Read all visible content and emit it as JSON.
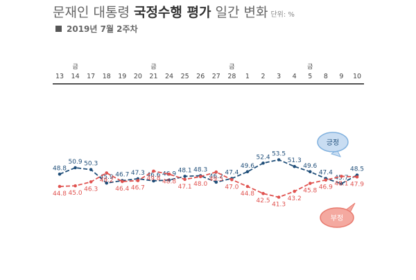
{
  "title_regular": "문재인 대통령 ",
  "title_bold": "국정수행 평가",
  "title_suffix": " 일간 변화",
  "unit": "단위: %",
  "subtitle": "2019년 7월 2주차",
  "colors": {
    "positive": "#1f4e79",
    "negative": "#e0524f",
    "positive_bubble": "#c9ddf2",
    "positive_bubble_stroke": "#7fb0de",
    "negative_bubble": "#f4a9a0",
    "negative_bubble_stroke": "#e87a6e",
    "axis_line": "#1a1a1a",
    "label_text": "#555555"
  },
  "chart_data": {
    "type": "line",
    "categories": [
      "13",
      "14",
      "17",
      "18",
      "19",
      "20",
      "21",
      "24",
      "25",
      "26",
      "27",
      "28",
      "1",
      "2",
      "3",
      "4",
      "5",
      "8",
      "9",
      "10"
    ],
    "day_markers": {
      "14": "금",
      "21": "금",
      "28": "금",
      "5": "금"
    },
    "series": [
      {
        "name": "긍정",
        "values": [
          48.8,
          50.9,
          50.3,
          45.9,
          46.7,
          47.3,
          46.6,
          46.9,
          48.1,
          48.3,
          46.2,
          47.4,
          49.6,
          52.4,
          53.5,
          51.3,
          49.6,
          47.4,
          45.7,
          48.5
        ]
      },
      {
        "name": "부정",
        "values": [
          44.8,
          45.0,
          46.3,
          49.2,
          46.4,
          46.7,
          49.8,
          48.8,
          47.1,
          48.0,
          49.5,
          47.0,
          44.8,
          42.5,
          41.3,
          43.2,
          45.8,
          46.9,
          48.1,
          47.9
        ]
      }
    ],
    "bubble_labels": {
      "positive": "긍정",
      "negative": "부정"
    }
  }
}
